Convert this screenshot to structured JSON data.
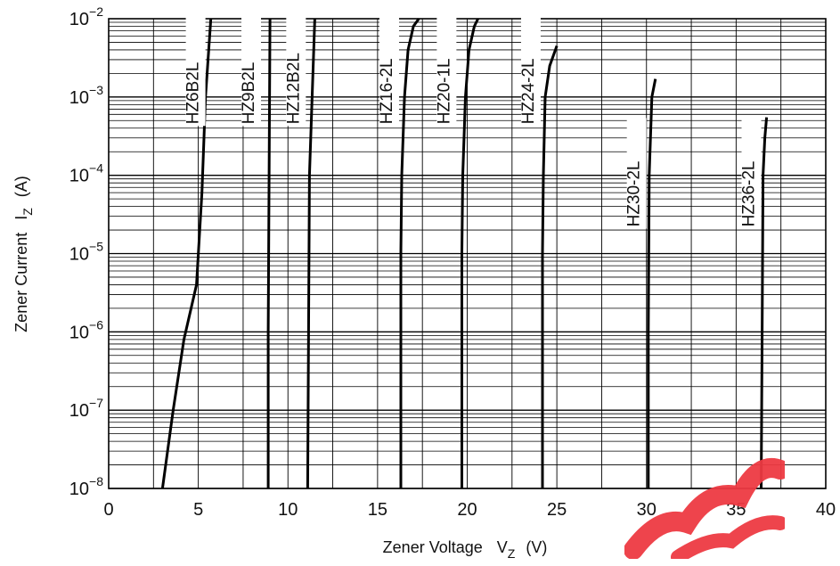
{
  "chart_data": {
    "type": "line",
    "title": "",
    "xlabel": "Zener Voltage",
    "xlabel_symbol": "V",
    "xlabel_subscript": "Z",
    "xlabel_unit": "(V)",
    "ylabel": "Zener Current",
    "ylabel_symbol": "I",
    "ylabel_subscript": "Z",
    "ylabel_unit": "(A)",
    "xlim": [
      0,
      40
    ],
    "ylim": [
      1e-08,
      0.01
    ],
    "yscale": "log",
    "grid": true,
    "x_ticks": [
      {
        "value": 0,
        "label": "0"
      },
      {
        "value": 5,
        "label": "5"
      },
      {
        "value": 10,
        "label": "10"
      },
      {
        "value": 15,
        "label": "15"
      },
      {
        "value": 20,
        "label": "20"
      },
      {
        "value": 25,
        "label": "25"
      },
      {
        "value": 30,
        "label": "30"
      },
      {
        "value": 35,
        "label": "35"
      },
      {
        "value": 40,
        "label": "40"
      }
    ],
    "y_ticks": [
      {
        "value": 1e-08,
        "base": "10",
        "exp": "−8"
      },
      {
        "value": 1e-07,
        "base": "10",
        "exp": "−7"
      },
      {
        "value": 1e-06,
        "base": "10",
        "exp": "−6"
      },
      {
        "value": 1e-05,
        "base": "10",
        "exp": "−5"
      },
      {
        "value": 0.0001,
        "base": "10",
        "exp": "−4"
      },
      {
        "value": 0.001,
        "base": "10",
        "exp": "−3"
      },
      {
        "value": 0.01,
        "base": "10",
        "exp": "−2"
      }
    ],
    "series": [
      {
        "name": "HZ6B2L",
        "label_x": 5.0,
        "label_y": 0.00045,
        "points": [
          [
            3.0,
            1e-08
          ],
          [
            3.6,
            1e-07
          ],
          [
            4.2,
            8e-07
          ],
          [
            4.9,
            4e-06
          ],
          [
            5.2,
            6e-05
          ],
          [
            5.4,
            0.001
          ],
          [
            5.7,
            0.01
          ]
        ]
      },
      {
        "name": "HZ9B2L",
        "label_x": 8.1,
        "label_y": 0.00045,
        "points": [
          [
            8.9,
            1e-08
          ],
          [
            8.9,
            1e-06
          ],
          [
            8.95,
            0.0001
          ],
          [
            9.0,
            0.01
          ]
        ]
      },
      {
        "name": "HZ12B2L",
        "label_x": 10.6,
        "label_y": 0.00045,
        "points": [
          [
            11.1,
            1e-08
          ],
          [
            11.15,
            1e-06
          ],
          [
            11.2,
            0.0001
          ],
          [
            11.35,
            0.001
          ],
          [
            11.5,
            0.01
          ]
        ]
      },
      {
        "name": "HZ16-2L",
        "label_x": 15.8,
        "label_y": 0.00045,
        "points": [
          [
            16.3,
            1e-08
          ],
          [
            16.3,
            1e-05
          ],
          [
            16.35,
            0.0001
          ],
          [
            16.5,
            0.001
          ],
          [
            16.7,
            0.004
          ],
          [
            17.0,
            0.008
          ],
          [
            17.3,
            0.01
          ]
        ]
      },
      {
        "name": "HZ20-1L",
        "label_x": 19.0,
        "label_y": 0.00045,
        "points": [
          [
            19.7,
            1e-08
          ],
          [
            19.7,
            1e-05
          ],
          [
            19.75,
            0.0001
          ],
          [
            19.9,
            0.001
          ],
          [
            20.1,
            0.004
          ],
          [
            20.4,
            0.008
          ],
          [
            20.6,
            0.01
          ]
        ]
      },
      {
        "name": "HZ24-2L",
        "label_x": 23.7,
        "label_y": 0.00045,
        "points": [
          [
            24.2,
            1e-08
          ],
          [
            24.2,
            1e-05
          ],
          [
            24.25,
            0.0001
          ],
          [
            24.35,
            0.001
          ],
          [
            24.6,
            0.0025
          ],
          [
            25.0,
            0.0045
          ]
        ]
      },
      {
        "name": "HZ30-2L",
        "label_x": 29.6,
        "label_y": 2.2e-05,
        "points": [
          [
            30.1,
            1e-08
          ],
          [
            30.1,
            1e-06
          ],
          [
            30.15,
            0.0001
          ],
          [
            30.3,
            0.001
          ],
          [
            30.5,
            0.0017
          ]
        ]
      },
      {
        "name": "HZ36-2L",
        "label_x": 36.0,
        "label_y": 2.2e-05,
        "points": [
          [
            36.4,
            1e-08
          ],
          [
            36.45,
            1e-06
          ],
          [
            36.5,
            0.0001
          ],
          [
            36.6,
            0.0003
          ],
          [
            36.7,
            0.00055
          ]
        ]
      }
    ]
  },
  "watermark_color": "#ee3a43"
}
